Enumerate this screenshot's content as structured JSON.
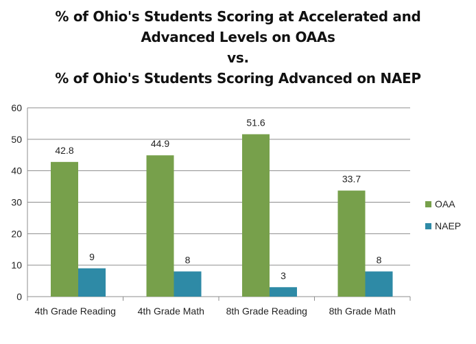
{
  "chart_data": {
    "type": "bar",
    "title_lines": [
      "% of Ohio's Students Scoring at Accelerated and",
      "Advanced Levels on OAAs",
      "vs.",
      "% of Ohio's Students Scoring Advanced on NAEP"
    ],
    "categories": [
      "4th Grade Reading",
      "4th Grade Math",
      "8th Grade Reading",
      "8th Grade Math"
    ],
    "series": [
      {
        "name": "OAA",
        "color": "#77a04b",
        "values": [
          42.8,
          44.9,
          51.6,
          33.7
        ],
        "labels": [
          "42.8",
          "44.9",
          "51.6",
          "33.7"
        ]
      },
      {
        "name": "NAEP",
        "color": "#2e8aa6",
        "values": [
          9,
          8,
          3,
          8
        ],
        "labels": [
          "9",
          "8",
          "3",
          "8"
        ]
      }
    ],
    "ylim": [
      0,
      60
    ],
    "yticks": [
      0,
      10,
      20,
      30,
      40,
      50,
      60
    ],
    "grid": true,
    "legend": "right",
    "xlabel": "",
    "ylabel": ""
  }
}
